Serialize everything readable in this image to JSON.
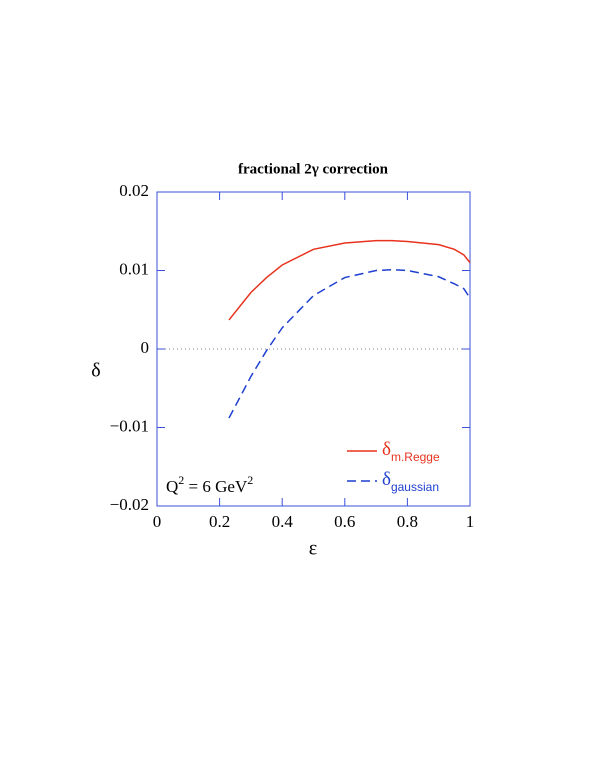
{
  "chart_data": {
    "type": "line",
    "title": "fractional 2γ correction",
    "x_label": "ε",
    "y_label": "δ",
    "annotation": [
      "Q",
      "2",
      " = 6 GeV",
      "2"
    ],
    "x": [
      0.23,
      0.3,
      0.35,
      0.4,
      0.5,
      0.6,
      0.7,
      0.75,
      0.8,
      0.9,
      0.95,
      0.98,
      1.0
    ],
    "series": [
      {
        "name": "δ",
        "subscript": "m.Regge",
        "color": "#e8321e",
        "dash": false,
        "values": [
          0.0037,
          0.0072,
          0.0091,
          0.0107,
          0.0127,
          0.0135,
          0.0138,
          0.0138,
          0.0137,
          0.0133,
          0.0127,
          0.012,
          0.011
        ]
      },
      {
        "name": "δ",
        "subscript": "gaussian",
        "color": "#1f3fd0",
        "dash": true,
        "values": [
          -0.0088,
          -0.0035,
          -0.0002,
          0.0027,
          0.0068,
          0.0091,
          0.01,
          0.0101,
          0.01,
          0.0092,
          0.0083,
          0.0077,
          0.0065
        ]
      }
    ],
    "xlim": [
      0,
      1
    ],
    "ylim": [
      -0.02,
      0.02
    ],
    "xticks": [
      0,
      0.2,
      0.4,
      0.6,
      0.8,
      1
    ],
    "yticks": [
      {
        "value": -0.02,
        "label": "−0.02"
      },
      {
        "value": -0.01,
        "label": "−0.01"
      },
      0,
      0.01,
      0.02
    ],
    "zero_line": true,
    "frame_color": "#3a4fd8"
  }
}
